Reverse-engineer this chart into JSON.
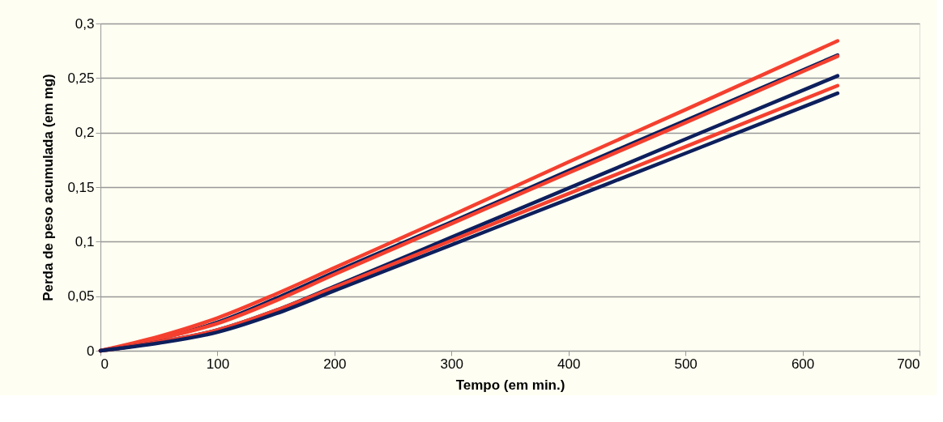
{
  "chart_data": {
    "type": "line",
    "xlabel": "Tempo (em min.)",
    "ylabel": "Perda de peso acumulada (em mg)",
    "x": [
      0,
      50,
      100,
      150,
      200,
      300,
      400,
      500,
      630
    ],
    "series": [
      {
        "color": "#0d1f5c",
        "values": [
          0,
          0.011,
          0.026,
          0.048,
          0.072,
          0.118,
          0.165,
          0.211,
          0.271
        ]
      },
      {
        "color": "#f5402f",
        "values": [
          0,
          0.013,
          0.03,
          0.052,
          0.076,
          0.124,
          0.173,
          0.221,
          0.284
        ]
      },
      {
        "color": "#f5402f",
        "values": [
          0,
          0.011,
          0.025,
          0.046,
          0.07,
          0.1165,
          0.163,
          0.209,
          0.27
        ]
      },
      {
        "color": "#0d1f5c",
        "values": [
          0,
          0.008,
          0.019,
          0.037,
          0.059,
          0.104,
          0.149,
          0.194,
          0.252
        ]
      },
      {
        "color": "#f5402f",
        "values": [
          0,
          0.008,
          0.019,
          0.037,
          0.058,
          0.101,
          0.144,
          0.187,
          0.243
        ]
      },
      {
        "color": "#0d1f5c",
        "values": [
          0,
          0.007,
          0.017,
          0.034,
          0.055,
          0.097,
          0.139,
          0.181,
          0.236
        ]
      }
    ],
    "xlim": [
      0,
      700
    ],
    "xticks": [
      0,
      100,
      200,
      300,
      400,
      500,
      600,
      700
    ],
    "ylim": [
      0,
      0.3
    ],
    "yticks": [
      0,
      {
        "value": 0.05,
        "label": "0,05"
      },
      {
        "value": 0.1,
        "label": "0,1"
      },
      {
        "value": 0.15,
        "label": "0,15"
      },
      {
        "value": 0.2,
        "label": "0,2"
      },
      {
        "value": 0.25,
        "label": "0,25"
      },
      {
        "value": 0.3,
        "label": "0,3"
      }
    ],
    "grid": "y",
    "legend": false,
    "line_style": "solid",
    "marker": "none"
  }
}
